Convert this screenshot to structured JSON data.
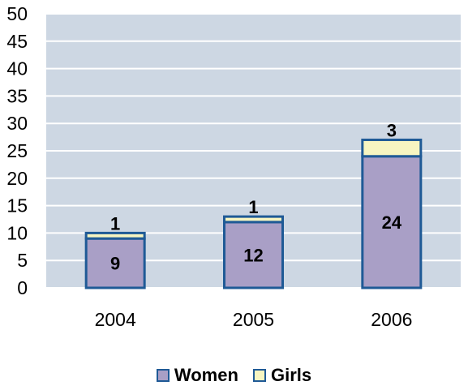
{
  "chart_data": {
    "type": "bar",
    "stacked": true,
    "categories": [
      "2004",
      "2005",
      "2006"
    ],
    "series": [
      {
        "name": "Women",
        "values": [
          9,
          12,
          24
        ],
        "color": "#a99fc6"
      },
      {
        "name": "Girls",
        "values": [
          1,
          1,
          3
        ],
        "color": "#f7f5c1"
      }
    ],
    "data_labels": {
      "Women": [
        "9",
        "12",
        "24"
      ],
      "Girls": [
        "1",
        "1",
        "3"
      ]
    },
    "ylim": [
      0,
      50
    ],
    "yticks": [
      "0",
      "5",
      "10",
      "15",
      "20",
      "25",
      "30",
      "35",
      "40",
      "45",
      "50"
    ],
    "grid": true,
    "legend_position": "bottom",
    "plot_background": "#cdd7e3",
    "gridline_color": "#ffffff",
    "bar_border_color": "#1f5a96"
  }
}
